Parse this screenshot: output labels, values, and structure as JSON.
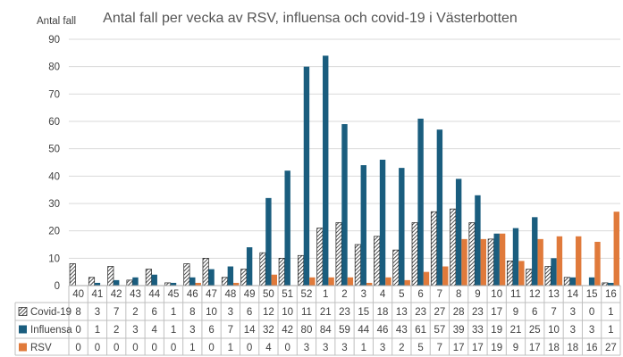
{
  "chart_data": {
    "type": "bar",
    "title": "Antal fall per vecka av RSV, influensa och covid-19 i Västerbotten",
    "ylabel": "Antal fall",
    "xlabel": "",
    "ylim": [
      0,
      90
    ],
    "yticks": [
      0,
      10,
      20,
      30,
      40,
      50,
      60,
      70,
      80,
      90
    ],
    "grid": "horizontal",
    "legend": "table-below",
    "categories": [
      "40",
      "41",
      "42",
      "43",
      "44",
      "45",
      "46",
      "47",
      "48",
      "49",
      "50",
      "51",
      "52",
      "1",
      "2",
      "3",
      "4",
      "5",
      "6",
      "7",
      "8",
      "9",
      "10",
      "11",
      "12",
      "13",
      "14",
      "15",
      "16"
    ],
    "series": [
      {
        "name": "Covid-19",
        "pattern": "diagonal-hatch",
        "color": "#1f1f1f",
        "values": [
          8,
          3,
          7,
          2,
          6,
          1,
          8,
          10,
          3,
          6,
          12,
          10,
          11,
          21,
          23,
          15,
          18,
          13,
          23,
          27,
          28,
          23,
          17,
          9,
          6,
          7,
          3,
          0,
          1
        ]
      },
      {
        "name": "Influensa",
        "color": "#1a5d7e",
        "values": [
          0,
          1,
          2,
          3,
          4,
          1,
          3,
          6,
          7,
          14,
          32,
          42,
          80,
          84,
          59,
          44,
          46,
          43,
          61,
          57,
          39,
          33,
          19,
          21,
          25,
          10,
          3,
          3,
          1
        ]
      },
      {
        "name": "RSV",
        "color": "#e07a3b",
        "values": [
          0,
          0,
          0,
          0,
          0,
          0,
          1,
          0,
          1,
          0,
          4,
          0,
          3,
          3,
          3,
          1,
          3,
          2,
          5,
          7,
          17,
          17,
          19,
          9,
          17,
          18,
          18,
          16,
          27
        ]
      }
    ]
  }
}
